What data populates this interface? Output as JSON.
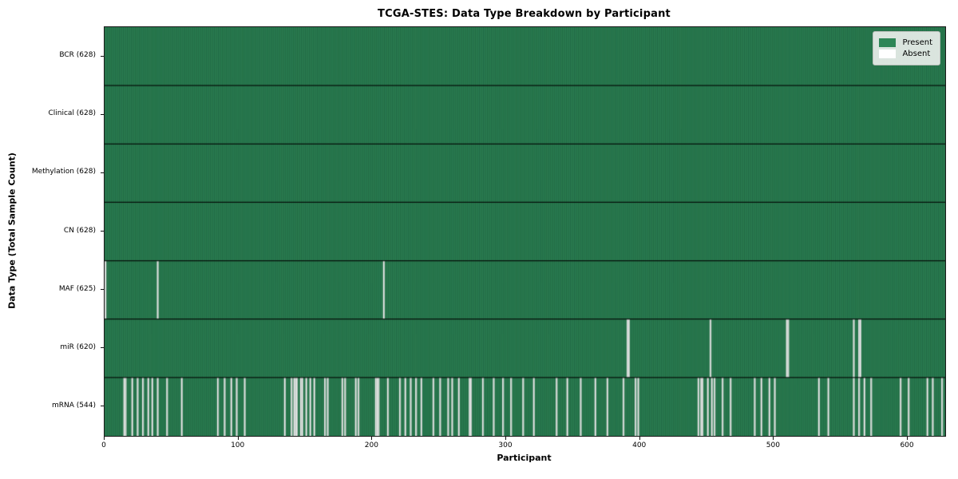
{
  "figure": {
    "title": "TCGA-STES: Data Type Breakdown by Participant"
  },
  "legend": {
    "items": [
      {
        "name": "present",
        "label": "Present",
        "color": "#2e8657"
      },
      {
        "name": "absent",
        "label": "Absent",
        "color": "#ffffff"
      }
    ]
  },
  "chart_data": {
    "type": "heatmap",
    "title": "TCGA-STES: Data Type Breakdown by Participant",
    "xlabel": "Participant",
    "ylabel": "Data Type (Total Sample Count)",
    "n_participants": 628,
    "x_range": [
      0,
      628
    ],
    "x_ticks": [
      0,
      100,
      200,
      300,
      400,
      500,
      600
    ],
    "legend_position": "upper right",
    "grid": false,
    "colors": {
      "present": "#2e8657",
      "absent": "#ffffff",
      "cell_edge": "rgba(8,38,24,0.42)",
      "row_divider": "rgba(0,0,0,0.85)",
      "frame": "#1a1a1a"
    },
    "rows": [
      {
        "data_type": "BCR",
        "label": "BCR (628)",
        "present_count": 628,
        "absent_count": 0,
        "absent_participants": []
      },
      {
        "data_type": "Clinical",
        "label": "Clinical (628)",
        "present_count": 628,
        "absent_count": 0,
        "absent_participants": []
      },
      {
        "data_type": "Methylation",
        "label": "Methylation (628)",
        "present_count": 628,
        "absent_count": 0,
        "absent_participants": []
      },
      {
        "data_type": "CN",
        "label": "CN (628)",
        "present_count": 628,
        "absent_count": 0,
        "absent_participants": []
      },
      {
        "data_type": "MAF",
        "label": "MAF (625)",
        "present_count": 625,
        "absent_count": 3,
        "absent_participants": [
          0,
          39,
          208
        ]
      },
      {
        "data_type": "miR",
        "label": "miR (620)",
        "present_count": 620,
        "absent_count": 8,
        "absent_participants": [
          390,
          391,
          452,
          509,
          510,
          559,
          563,
          564
        ]
      },
      {
        "data_type": "mRNA",
        "label": "mRNA (544)",
        "present_count": 544,
        "absent_count": 84,
        "absent_participants": [
          14,
          15,
          20,
          24,
          28,
          32,
          35,
          39,
          46,
          57,
          84,
          89,
          94,
          98,
          104,
          134,
          139,
          141,
          142,
          143,
          146,
          147,
          150,
          153,
          156,
          164,
          166,
          177,
          179,
          187,
          189,
          202,
          203,
          204,
          211,
          220,
          224,
          228,
          232,
          236,
          245,
          250,
          256,
          259,
          264,
          272,
          273,
          282,
          290,
          297,
          303,
          312,
          320,
          337,
          345,
          355,
          366,
          375,
          387,
          396,
          398,
          443,
          445,
          446,
          450,
          453,
          455,
          461,
          467,
          485,
          490,
          496,
          500,
          533,
          540,
          559,
          563,
          567,
          572,
          594,
          600,
          614,
          618,
          625
        ]
      }
    ]
  }
}
